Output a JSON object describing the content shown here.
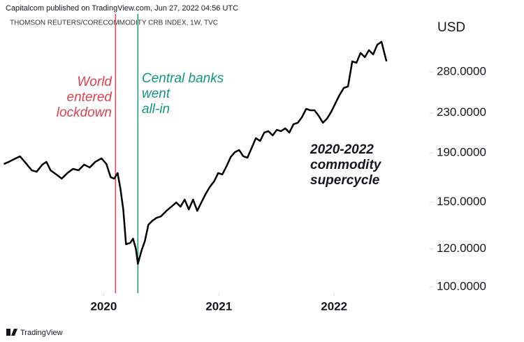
{
  "header": "Capitalcom published on TradingView.com, Jun 27, 2022 04:56 UTC",
  "footer": "TradingView",
  "chart_data": {
    "type": "line",
    "title": "THOMSON REUTERS/CORECOMMODITY CRB INDEX, 1W, TVC",
    "y_axis_label": "USD",
    "log": true,
    "color": "#000000",
    "xlim": [
      2019.1,
      2022.83
    ],
    "xticks": [
      2020,
      2021,
      2022
    ],
    "ylim": [
      97,
      367
    ],
    "yticks": [
      {
        "value": 100,
        "label": "100.0000"
      },
      {
        "value": 120,
        "label": "120.0000"
      },
      {
        "value": 150,
        "label": "150.0000"
      },
      {
        "value": 190,
        "label": "190.0000"
      },
      {
        "value": 230,
        "label": "230.0000"
      },
      {
        "value": 280,
        "label": "280.0000"
      }
    ],
    "x": [
      2019.133,
      2019.176,
      2019.224,
      2019.273,
      2019.315,
      2019.376,
      2019.418,
      2019.467,
      2019.503,
      2019.539,
      2019.588,
      2019.636,
      2019.685,
      2019.733,
      2019.782,
      2019.83,
      2019.879,
      2019.927,
      2019.982,
      2020.024,
      2020.061,
      2020.091,
      2020.121,
      2020.145,
      2020.17,
      2020.194,
      2020.23,
      2020.255,
      2020.279,
      2020.297,
      2020.327,
      2020.358,
      2020.388,
      2020.424,
      2020.461,
      2020.497,
      2020.545,
      2020.588,
      2020.63,
      2020.667,
      2020.703,
      2020.739,
      2020.776,
      2020.812,
      2020.848,
      2020.885,
      2020.921,
      2020.958,
      2020.994,
      2021.03,
      2021.067,
      2021.103,
      2021.139,
      2021.176,
      2021.212,
      2021.248,
      2021.285,
      2021.321,
      2021.358,
      2021.394,
      2021.43,
      2021.467,
      2021.503,
      2021.539,
      2021.576,
      2021.612,
      2021.648,
      2021.685,
      2021.721,
      2021.758,
      2021.794,
      2021.83,
      2021.867,
      2021.903,
      2021.939,
      2021.976,
      2022.012,
      2022.048,
      2022.085,
      2022.121,
      2022.158,
      2022.194,
      2022.23,
      2022.267,
      2022.303,
      2022.339,
      2022.376,
      2022.412,
      2022.455
    ],
    "values": [
      180.0,
      181.9,
      184.4,
      186.8,
      181.9,
      174.7,
      173.5,
      179.5,
      181.9,
      174.7,
      171.3,
      167.9,
      172.4,
      175.9,
      174.7,
      179.5,
      177.1,
      181.9,
      185.0,
      180.0,
      169.0,
      167.9,
      172.4,
      160.2,
      144.9,
      122.6,
      123.4,
      125.9,
      120.1,
      111.6,
      118.6,
      124.6,
      134.6,
      137.3,
      139.2,
      140.1,
      143.9,
      146.8,
      149.8,
      146.8,
      151.8,
      144.9,
      151.8,
      143.9,
      149.8,
      156.0,
      161.3,
      165.6,
      172.4,
      171.3,
      178.3,
      186.2,
      190.6,
      192.5,
      186.8,
      185.6,
      194.5,
      203.8,
      201.1,
      209.3,
      210.7,
      206.5,
      212.1,
      210.7,
      213.6,
      209.3,
      217.9,
      219.4,
      225.3,
      234.5,
      232.9,
      232.9,
      226.8,
      219.4,
      223.8,
      231.4,
      240.9,
      250.7,
      259.3,
      261.0,
      294.4,
      292.4,
      306.5,
      300.4,
      310.6,
      304.4,
      319.0,
      323.3,
      294.4
    ],
    "events": [
      {
        "x": 2020.103,
        "color": "#e0404f",
        "lines": [
          "World",
          "entered",
          "lockdown"
        ]
      },
      {
        "x": 2020.297,
        "color": "#13967c",
        "lines": [
          "Central banks",
          "went",
          "all-in"
        ]
      }
    ],
    "annotation": {
      "lines": [
        "2020-2022",
        "commodity",
        "supercycle"
      ]
    }
  }
}
